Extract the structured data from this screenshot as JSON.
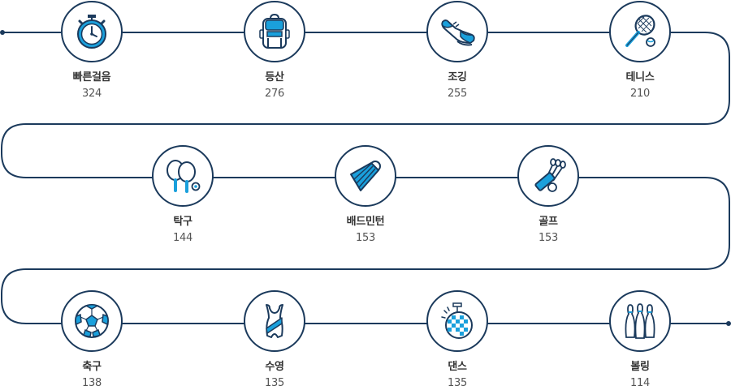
{
  "colors": {
    "line": "#1b3a5c",
    "accent": "#1aa0dc",
    "circle_fill": "#ffffff"
  },
  "activities": [
    {
      "label": "빠른걸음",
      "count": "324",
      "icon": "stopwatch-icon"
    },
    {
      "label": "등산",
      "count": "276",
      "icon": "backpack-icon"
    },
    {
      "label": "조깅",
      "count": "255",
      "icon": "running-shoe-icon"
    },
    {
      "label": "테니스",
      "count": "210",
      "icon": "tennis-racket-icon"
    },
    {
      "label": "탁구",
      "count": "144",
      "icon": "ping-pong-paddles-icon"
    },
    {
      "label": "배드민턴",
      "count": "153",
      "icon": "shuttlecock-icon"
    },
    {
      "label": "골프",
      "count": "153",
      "icon": "golf-clubs-icon"
    },
    {
      "label": "축구",
      "count": "138",
      "icon": "soccer-ball-icon"
    },
    {
      "label": "수영",
      "count": "135",
      "icon": "swimsuit-icon"
    },
    {
      "label": "댄스",
      "count": "135",
      "icon": "disco-ball-icon"
    },
    {
      "label": "볼링",
      "count": "114",
      "icon": "bowling-pins-icon"
    }
  ]
}
